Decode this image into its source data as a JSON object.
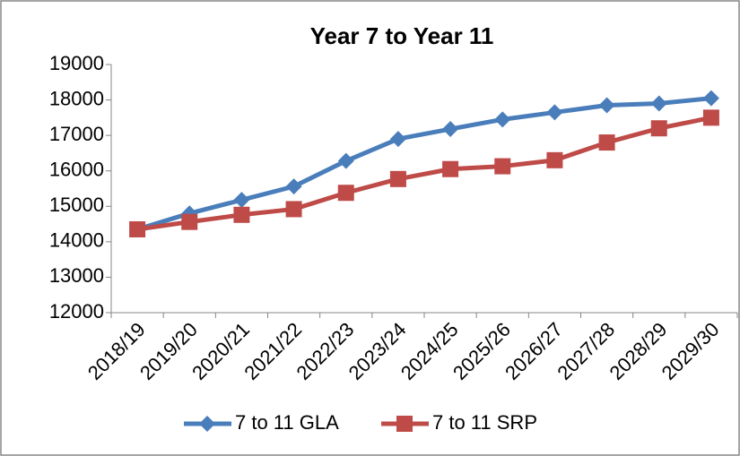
{
  "chart_data": {
    "type": "line",
    "title": "Year 7 to Year 11",
    "categories": [
      "2018/19",
      "2019/20",
      "2020/21",
      "2021/22",
      "2022/23",
      "2023/24",
      "2024/25",
      "2025/26",
      "2026/27",
      "2027/28",
      "2028/29",
      "2029/30"
    ],
    "series": [
      {
        "name": "7 to 11 GLA",
        "color": "#4a7ebb",
        "marker": "diamond",
        "values": [
          14350,
          14800,
          15180,
          15560,
          16280,
          16900,
          17180,
          17450,
          17650,
          17850,
          17900,
          18050
        ]
      },
      {
        "name": "7 to 11 SRP",
        "color": "#be4b48",
        "marker": "square",
        "values": [
          14350,
          14560,
          14760,
          14920,
          15380,
          15770,
          16050,
          16130,
          16300,
          16800,
          17200,
          17500
        ]
      }
    ],
    "ylim": [
      12000,
      19000
    ],
    "yticks": [
      12000,
      13000,
      14000,
      15000,
      16000,
      17000,
      18000,
      19000
    ],
    "grid": false,
    "legend": "bottom"
  }
}
